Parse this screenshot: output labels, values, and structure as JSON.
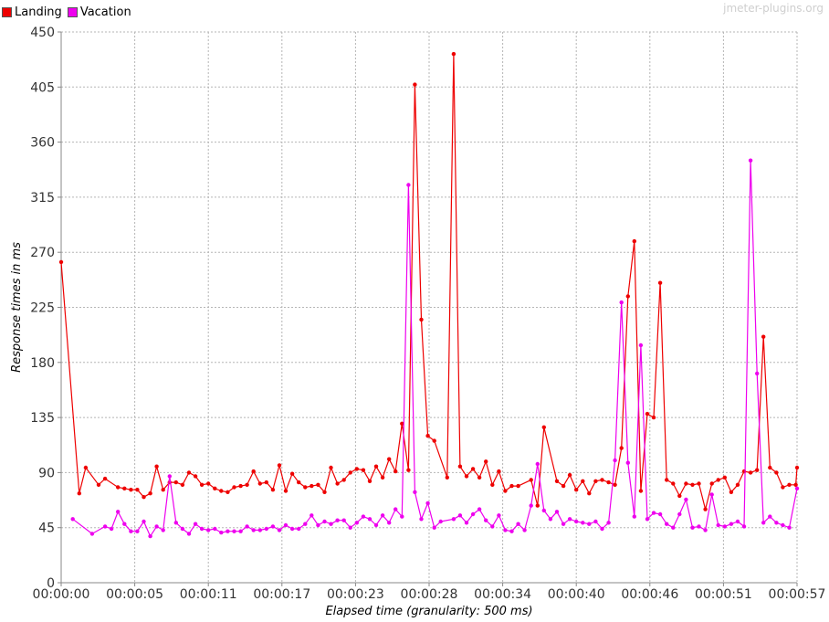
{
  "watermark": "jmeter-plugins.org",
  "colors": {
    "Landing": "#ee0000",
    "Vacation": "#ee00ee"
  },
  "chart_data": {
    "type": "line",
    "xlabel": "Elapsed time (granularity: 500 ms)",
    "ylabel": "Response times in ms",
    "ylim": [
      0,
      450
    ],
    "xlim": [
      0,
      57
    ],
    "yticks": [
      0,
      45,
      90,
      135,
      180,
      225,
      270,
      315,
      360,
      405,
      450
    ],
    "xticks": [
      {
        "value": 0,
        "label": "00:00:00"
      },
      {
        "value": 5.7,
        "label": "00:00:05"
      },
      {
        "value": 11.4,
        "label": "00:00:11"
      },
      {
        "value": 17.1,
        "label": "00:00:17"
      },
      {
        "value": 22.8,
        "label": "00:00:23"
      },
      {
        "value": 28.5,
        "label": "00:00:28"
      },
      {
        "value": 34.2,
        "label": "00:00:34"
      },
      {
        "value": 39.9,
        "label": "00:00:40"
      },
      {
        "value": 45.6,
        "label": "00:00:46"
      },
      {
        "value": 51.3,
        "label": "00:00:51"
      },
      {
        "value": 57,
        "label": "00:00:57"
      }
    ],
    "grid": true,
    "legend_position": "top-left",
    "series": [
      {
        "name": "Landing",
        "points": [
          [
            0,
            262
          ],
          [
            1.4,
            73
          ],
          [
            1.9,
            94
          ],
          [
            2.9,
            80
          ],
          [
            3.4,
            85
          ],
          [
            4.4,
            78
          ],
          [
            4.9,
            77
          ],
          [
            5.4,
            76
          ],
          [
            5.9,
            76
          ],
          [
            6.4,
            70
          ],
          [
            6.9,
            73
          ],
          [
            7.4,
            95
          ],
          [
            7.9,
            76
          ],
          [
            8.4,
            82
          ],
          [
            8.9,
            82
          ],
          [
            9.4,
            80
          ],
          [
            9.9,
            90
          ],
          [
            10.4,
            87
          ],
          [
            10.9,
            80
          ],
          [
            11.4,
            81
          ],
          [
            11.9,
            77
          ],
          [
            12.4,
            75
          ],
          [
            12.9,
            74
          ],
          [
            13.4,
            78
          ],
          [
            13.9,
            79
          ],
          [
            14.4,
            80
          ],
          [
            14.9,
            91
          ],
          [
            15.4,
            81
          ],
          [
            15.9,
            82
          ],
          [
            16.4,
            76
          ],
          [
            16.9,
            96
          ],
          [
            17.4,
            75
          ],
          [
            17.9,
            89
          ],
          [
            18.4,
            82
          ],
          [
            18.9,
            78
          ],
          [
            19.4,
            79
          ],
          [
            19.9,
            80
          ],
          [
            20.4,
            74
          ],
          [
            20.9,
            94
          ],
          [
            21.4,
            81
          ],
          [
            21.9,
            84
          ],
          [
            22.4,
            90
          ],
          [
            22.9,
            93
          ],
          [
            23.4,
            92
          ],
          [
            23.9,
            83
          ],
          [
            24.4,
            95
          ],
          [
            24.9,
            86
          ],
          [
            25.4,
            101
          ],
          [
            25.9,
            91
          ],
          [
            26.4,
            130
          ],
          [
            26.9,
            92
          ],
          [
            27.4,
            407
          ],
          [
            27.9,
            215
          ],
          [
            28.4,
            120
          ],
          [
            28.9,
            116
          ],
          [
            29.9,
            86
          ],
          [
            30.4,
            432
          ],
          [
            30.9,
            95
          ],
          [
            31.4,
            87
          ],
          [
            31.9,
            93
          ],
          [
            32.4,
            86
          ],
          [
            32.9,
            99
          ],
          [
            33.4,
            80
          ],
          [
            33.9,
            91
          ],
          [
            34.4,
            75
          ],
          [
            34.9,
            79
          ],
          [
            35.4,
            79
          ],
          [
            36.4,
            84
          ],
          [
            36.9,
            63
          ],
          [
            37.4,
            127
          ],
          [
            38.4,
            83
          ],
          [
            38.9,
            79
          ],
          [
            39.4,
            88
          ],
          [
            39.9,
            76
          ],
          [
            40.4,
            83
          ],
          [
            40.9,
            73
          ],
          [
            41.4,
            83
          ],
          [
            41.9,
            84
          ],
          [
            42.4,
            82
          ],
          [
            42.9,
            80
          ],
          [
            43.4,
            110
          ],
          [
            43.9,
            234
          ],
          [
            44.4,
            279
          ],
          [
            44.9,
            75
          ],
          [
            45.4,
            138
          ],
          [
            45.9,
            135
          ],
          [
            46.4,
            245
          ],
          [
            46.9,
            84
          ],
          [
            47.4,
            81
          ],
          [
            47.9,
            71
          ],
          [
            48.4,
            81
          ],
          [
            48.9,
            80
          ],
          [
            49.4,
            81
          ],
          [
            49.9,
            60
          ],
          [
            50.4,
            81
          ],
          [
            50.9,
            84
          ],
          [
            51.4,
            86
          ],
          [
            51.9,
            74
          ],
          [
            52.4,
            80
          ],
          [
            52.9,
            91
          ],
          [
            53.4,
            90
          ],
          [
            53.9,
            92
          ],
          [
            54.4,
            201
          ],
          [
            54.9,
            94
          ],
          [
            55.4,
            90
          ],
          [
            55.9,
            78
          ],
          [
            56.4,
            80
          ],
          [
            56.9,
            80
          ],
          [
            57,
            94
          ]
        ]
      },
      {
        "name": "Vacation",
        "points": [
          [
            0.9,
            52
          ],
          [
            2.4,
            40
          ],
          [
            3.4,
            46
          ],
          [
            3.9,
            44
          ],
          [
            4.4,
            58
          ],
          [
            4.9,
            48
          ],
          [
            5.4,
            42
          ],
          [
            5.9,
            42
          ],
          [
            6.4,
            50
          ],
          [
            6.9,
            38
          ],
          [
            7.4,
            46
          ],
          [
            7.9,
            43
          ],
          [
            8.4,
            87
          ],
          [
            8.9,
            49
          ],
          [
            9.4,
            44
          ],
          [
            9.9,
            40
          ],
          [
            10.4,
            48
          ],
          [
            10.9,
            44
          ],
          [
            11.4,
            43
          ],
          [
            11.9,
            44
          ],
          [
            12.4,
            41
          ],
          [
            12.9,
            42
          ],
          [
            13.4,
            42
          ],
          [
            13.9,
            42
          ],
          [
            14.4,
            46
          ],
          [
            14.9,
            43
          ],
          [
            15.4,
            43
          ],
          [
            15.9,
            44
          ],
          [
            16.4,
            46
          ],
          [
            16.9,
            43
          ],
          [
            17.4,
            47
          ],
          [
            17.9,
            44
          ],
          [
            18.4,
            44
          ],
          [
            18.9,
            48
          ],
          [
            19.4,
            55
          ],
          [
            19.9,
            47
          ],
          [
            20.4,
            50
          ],
          [
            20.9,
            48
          ],
          [
            21.4,
            51
          ],
          [
            21.9,
            51
          ],
          [
            22.4,
            45
          ],
          [
            22.9,
            49
          ],
          [
            23.4,
            54
          ],
          [
            23.9,
            52
          ],
          [
            24.4,
            47
          ],
          [
            24.9,
            55
          ],
          [
            25.4,
            49
          ],
          [
            25.9,
            60
          ],
          [
            26.4,
            54
          ],
          [
            26.9,
            325
          ],
          [
            27.4,
            74
          ],
          [
            27.9,
            52
          ],
          [
            28.4,
            65
          ],
          [
            28.9,
            45
          ],
          [
            29.4,
            50
          ],
          [
            30.4,
            52
          ],
          [
            30.9,
            55
          ],
          [
            31.4,
            49
          ],
          [
            31.9,
            56
          ],
          [
            32.4,
            60
          ],
          [
            32.9,
            51
          ],
          [
            33.4,
            46
          ],
          [
            33.9,
            55
          ],
          [
            34.4,
            43
          ],
          [
            34.9,
            42
          ],
          [
            35.4,
            48
          ],
          [
            35.9,
            43
          ],
          [
            36.4,
            63
          ],
          [
            36.9,
            97
          ],
          [
            37.4,
            59
          ],
          [
            37.9,
            52
          ],
          [
            38.4,
            58
          ],
          [
            38.9,
            48
          ],
          [
            39.4,
            52
          ],
          [
            39.9,
            50
          ],
          [
            40.4,
            49
          ],
          [
            40.9,
            48
          ],
          [
            41.4,
            50
          ],
          [
            41.9,
            44
          ],
          [
            42.4,
            49
          ],
          [
            42.9,
            100
          ],
          [
            43.4,
            229
          ],
          [
            43.9,
            98
          ],
          [
            44.4,
            54
          ],
          [
            44.9,
            194
          ],
          [
            45.4,
            52
          ],
          [
            45.9,
            57
          ],
          [
            46.4,
            56
          ],
          [
            46.9,
            48
          ],
          [
            47.4,
            45
          ],
          [
            47.9,
            56
          ],
          [
            48.4,
            68
          ],
          [
            48.9,
            45
          ],
          [
            49.4,
            46
          ],
          [
            49.9,
            43
          ],
          [
            50.4,
            72
          ],
          [
            50.9,
            47
          ],
          [
            51.4,
            46
          ],
          [
            51.9,
            48
          ],
          [
            52.4,
            50
          ],
          [
            52.9,
            46
          ],
          [
            53.4,
            345
          ],
          [
            53.9,
            171
          ],
          [
            54.4,
            49
          ],
          [
            54.9,
            54
          ],
          [
            55.4,
            49
          ],
          [
            55.9,
            47
          ],
          [
            56.4,
            45
          ],
          [
            57,
            77
          ]
        ]
      }
    ]
  }
}
